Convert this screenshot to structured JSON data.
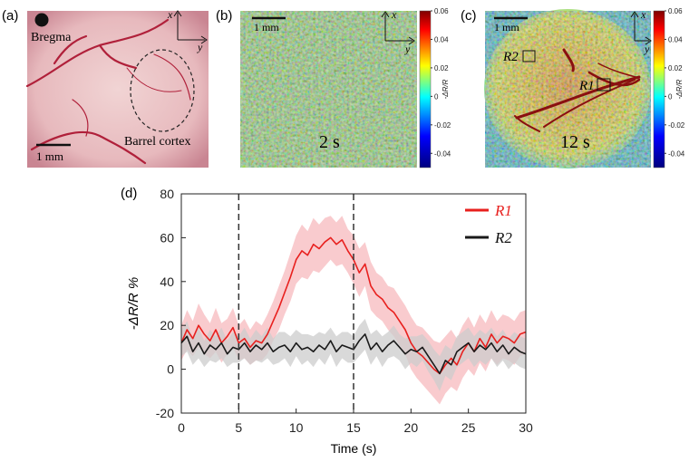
{
  "panels": {
    "a": {
      "label": "(a)",
      "landmark": "Bregma",
      "region": "Barrel cortex",
      "scale": "1 mm",
      "axes": [
        "x",
        "y"
      ]
    },
    "b": {
      "label": "(b)",
      "scale": "1 mm",
      "time": "2 s",
      "axes": [
        "x",
        "y"
      ]
    },
    "c": {
      "label": "(c)",
      "scale": "1 mm",
      "time": "12 s",
      "axes": [
        "x",
        "y"
      ],
      "rois": [
        "R2",
        "R1"
      ]
    }
  },
  "colorbar": {
    "label": "-ΔR/R",
    "clim": [
      -0.05,
      0.06
    ],
    "ticks": [
      0.06,
      0.04,
      0.02,
      0,
      -0.02,
      -0.04
    ]
  },
  "chart_data": {
    "type": "line",
    "label": "(d)",
    "xlabel": "Time (s)",
    "ylabel": "-ΔR/R %",
    "xlim": [
      0,
      30
    ],
    "xticks": [
      0,
      5,
      10,
      15,
      20,
      25,
      30
    ],
    "ylim": [
      -20,
      80
    ],
    "yticks": [
      -20,
      0,
      20,
      40,
      60,
      80
    ],
    "vlines": [
      5,
      15
    ],
    "legend": "upper right",
    "x": [
      0,
      0.5,
      1,
      1.5,
      2,
      2.5,
      3,
      3.5,
      4,
      4.5,
      5,
      5.5,
      6,
      6.5,
      7,
      7.5,
      8,
      8.5,
      9,
      9.5,
      10,
      10.5,
      11,
      11.5,
      12,
      12.5,
      13,
      13.5,
      14,
      14.5,
      15,
      15.5,
      16,
      16.5,
      17,
      17.5,
      18,
      18.5,
      19,
      19.5,
      20,
      20.5,
      21,
      21.5,
      22,
      22.5,
      23,
      23.5,
      24,
      24.5,
      25,
      25.5,
      26,
      26.5,
      27,
      27.5,
      28,
      28.5,
      29,
      29.5,
      30
    ],
    "series": [
      {
        "name": "R1",
        "color": "#e8201e",
        "band_color": "#f7b9bd",
        "values": [
          12,
          18,
          14,
          20,
          16,
          13,
          18,
          12,
          15,
          19,
          12,
          14,
          10,
          13,
          12,
          16,
          22,
          28,
          35,
          42,
          50,
          54,
          52,
          57,
          55,
          58,
          60,
          57,
          59,
          54,
          50,
          44,
          48,
          38,
          34,
          32,
          28,
          26,
          22,
          18,
          12,
          8,
          6,
          3,
          0,
          -2,
          2,
          5,
          2,
          8,
          12,
          8,
          14,
          10,
          16,
          12,
          15,
          14,
          12,
          16,
          17
        ],
        "errors": [
          8,
          9,
          8,
          10,
          9,
          8,
          10,
          9,
          8,
          9,
          8,
          9,
          8,
          9,
          8,
          9,
          9,
          10,
          10,
          11,
          11,
          12,
          11,
          12,
          11,
          11,
          10,
          10,
          11,
          10,
          11,
          11,
          10,
          11,
          10,
          10,
          10,
          11,
          11,
          11,
          12,
          12,
          13,
          13,
          13,
          14,
          13,
          13,
          12,
          12,
          12,
          11,
          11,
          11,
          11,
          10,
          10,
          10,
          10,
          10,
          10
        ]
      },
      {
        "name": "R2",
        "color": "#1a1a1a",
        "band_color": "#cccccc",
        "values": [
          12,
          15,
          8,
          12,
          7,
          11,
          9,
          12,
          7,
          10,
          9,
          12,
          8,
          11,
          9,
          12,
          8,
          10,
          11,
          8,
          12,
          9,
          10,
          8,
          11,
          9,
          13,
          8,
          11,
          10,
          9,
          13,
          16,
          9,
          12,
          8,
          11,
          13,
          10,
          7,
          9,
          8,
          10,
          6,
          2,
          -2,
          4,
          2,
          8,
          10,
          12,
          8,
          11,
          9,
          12,
          8,
          11,
          7,
          10,
          8,
          7
        ],
        "errors": [
          6,
          7,
          6,
          7,
          6,
          7,
          6,
          7,
          6,
          7,
          6,
          7,
          6,
          7,
          6,
          7,
          6,
          7,
          6,
          7,
          6,
          7,
          6,
          7,
          6,
          7,
          6,
          7,
          6,
          7,
          6,
          7,
          7,
          7,
          6,
          7,
          6,
          7,
          6,
          7,
          6,
          7,
          6,
          7,
          7,
          8,
          7,
          7,
          7,
          7,
          7,
          7,
          7,
          7,
          7,
          7,
          7,
          7,
          7,
          7,
          7
        ]
      }
    ]
  }
}
